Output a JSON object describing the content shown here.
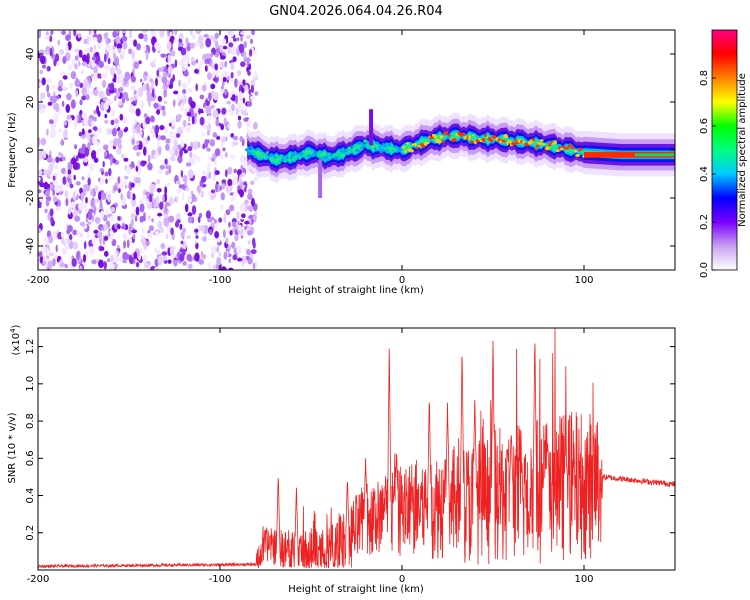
{
  "title": "GN04.2026.064.04.26.R04",
  "chart_data": [
    {
      "type": "heatmap",
      "name": "spectrogram",
      "xlabel": "Height of straight line (km)",
      "ylabel": "Frequency (Hz)",
      "xlim": [
        -200,
        150
      ],
      "ylim": [
        -50,
        50
      ],
      "x_ticks": [
        -200,
        -100,
        0,
        100
      ],
      "x_tick_labels": [
        "-200",
        "-100",
        "0",
        "100"
      ],
      "y_ticks": [
        -40,
        -20,
        0,
        20,
        40
      ],
      "y_tick_labels": [
        "-40",
        "-20",
        "0",
        "20",
        "40"
      ],
      "noise_region_x": [
        -200,
        -80
      ],
      "ridge_center": [
        {
          "x": -85,
          "y": 0
        },
        {
          "x": -70,
          "y": -4
        },
        {
          "x": -60,
          "y": -3
        },
        {
          "x": -50,
          "y": -1
        },
        {
          "x": -40,
          "y": -3
        },
        {
          "x": -30,
          "y": -1
        },
        {
          "x": -20,
          "y": 2
        },
        {
          "x": -10,
          "y": 1
        },
        {
          "x": 0,
          "y": 0
        },
        {
          "x": 10,
          "y": 3
        },
        {
          "x": 20,
          "y": 5
        },
        {
          "x": 30,
          "y": 6
        },
        {
          "x": 40,
          "y": 5
        },
        {
          "x": 60,
          "y": 4
        },
        {
          "x": 80,
          "y": 2
        },
        {
          "x": 100,
          "y": -1
        },
        {
          "x": 120,
          "y": -2
        },
        {
          "x": 150,
          "y": -2
        }
      ],
      "spikes": [
        {
          "x": -17,
          "y_top": 17
        },
        {
          "x": -45,
          "y_bottom": -20
        }
      ],
      "colorbar": {
        "label": "Normalized spectral amplitude",
        "range": [
          0,
          1
        ],
        "ticks": [
          0.0,
          0.2,
          0.4,
          0.6,
          0.8
        ],
        "tick_labels": [
          "0.0",
          "0.2",
          "0.4",
          "0.6",
          "0.8"
        ],
        "colors": [
          "#ffffff",
          "#c9a0f0",
          "#7a00ff",
          "#0000ff",
          "#00c8ff",
          "#00ff80",
          "#00ff00",
          "#ffff00",
          "#ff8000",
          "#ff0000",
          "#ff0080"
        ]
      }
    },
    {
      "type": "line",
      "name": "snr",
      "xlabel": "Height of straight line (km)",
      "ylabel": "SNR (10 * v/v)",
      "y_scale_label": "(x10",
      "y_scale_exponent": "4",
      "y_scale_suffix": ")",
      "xlim": [
        -200,
        150
      ],
      "ylim": [
        0,
        1.3
      ],
      "x_ticks": [
        -200,
        -100,
        0,
        100
      ],
      "x_tick_labels": [
        "-200",
        "-100",
        "0",
        "100"
      ],
      "y_ticks": [
        0.2,
        0.4,
        0.6,
        0.8,
        1.0,
        1.2
      ],
      "y_tick_labels": [
        "0.2",
        "0.4",
        "0.6",
        "0.8",
        "1.0",
        "1.2"
      ],
      "color": "#ee2222",
      "baseline": [
        {
          "x": -200,
          "y": 0.02
        },
        {
          "x": -80,
          "y": 0.03
        },
        {
          "x": -75,
          "y": 0.15
        },
        {
          "x": -60,
          "y": 0.1
        },
        {
          "x": -40,
          "y": 0.1
        },
        {
          "x": -20,
          "y": 0.28
        },
        {
          "x": 0,
          "y": 0.35
        },
        {
          "x": 20,
          "y": 0.38
        },
        {
          "x": 40,
          "y": 0.4
        },
        {
          "x": 60,
          "y": 0.45
        },
        {
          "x": 80,
          "y": 0.48
        },
        {
          "x": 100,
          "y": 0.5
        },
        {
          "x": 110,
          "y": 0.5
        },
        {
          "x": 150,
          "y": 0.46
        }
      ],
      "peaks": [
        {
          "x": -68,
          "y": 0.52
        },
        {
          "x": -58,
          "y": 0.45
        },
        {
          "x": -30,
          "y": 0.5
        },
        {
          "x": -20,
          "y": 0.6
        },
        {
          "x": -7,
          "y": 1.23
        },
        {
          "x": -3,
          "y": 0.65
        },
        {
          "x": 15,
          "y": 0.95
        },
        {
          "x": 25,
          "y": 0.9
        },
        {
          "x": 33,
          "y": 1.22
        },
        {
          "x": 40,
          "y": 0.95
        },
        {
          "x": 50,
          "y": 1.25
        },
        {
          "x": 60,
          "y": 0.75
        },
        {
          "x": 73,
          "y": 1.27
        },
        {
          "x": 80,
          "y": 0.7
        },
        {
          "x": 90,
          "y": 0.65
        }
      ]
    }
  ]
}
